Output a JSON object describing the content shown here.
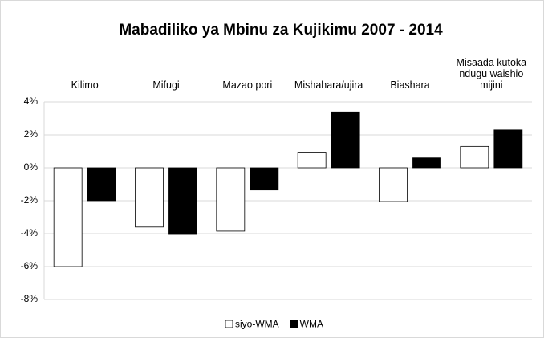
{
  "chart_data": {
    "type": "bar",
    "title": "Mabadiliko ya Mbinu za Kujikimu 2007 - 2014",
    "categories": [
      "Kilimo",
      "Mifugi",
      "Mazao pori",
      "Mishahara/ujira",
      "Biashara",
      "Misaada kutoka ndugu waishio mijini"
    ],
    "series": [
      {
        "name": "siyo-WMA",
        "color": "#ffffff",
        "values": [
          -6.0,
          -3.6,
          -3.85,
          0.95,
          -2.05,
          1.3
        ]
      },
      {
        "name": "WMA",
        "color": "#000000",
        "values": [
          -2.0,
          -4.05,
          -1.35,
          3.4,
          0.6,
          2.3
        ]
      }
    ],
    "ylim": [
      -8,
      4
    ],
    "yticks": [
      {
        "value": -8,
        "label": "-8%"
      },
      {
        "value": -6,
        "label": "-6%"
      },
      {
        "value": -4,
        "label": "-4%"
      },
      {
        "value": -2,
        "label": "-2%"
      },
      {
        "value": 0,
        "label": "0%"
      },
      {
        "value": 2,
        "label": "2%"
      },
      {
        "value": 4,
        "label": "4%"
      }
    ],
    "grid": true,
    "legend": "bottom"
  }
}
